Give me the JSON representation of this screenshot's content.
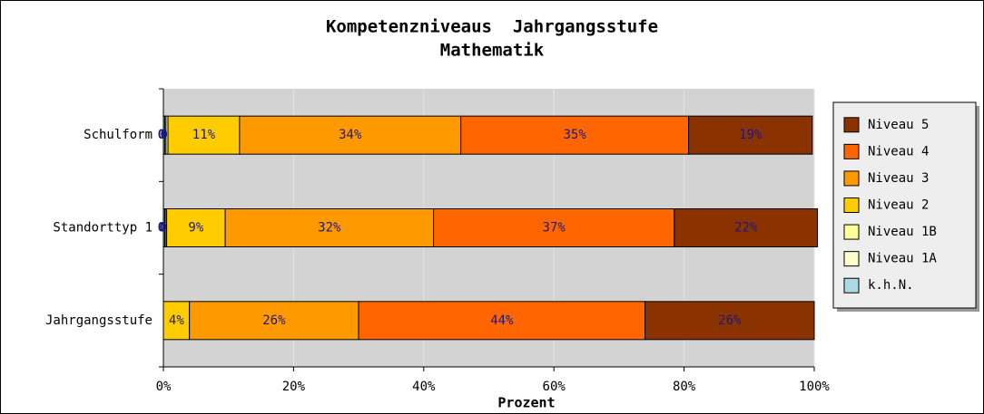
{
  "chart_data": {
    "type": "stacked_barh",
    "title": [
      "Kompetenzniveaus  Jahrgangsstufe",
      "Mathematik"
    ],
    "xlabel": "Prozent",
    "categories": [
      "Schulform",
      "Standorttyp 1",
      "Jahrgangsstufe"
    ],
    "series": [
      {
        "name": "k.h.N.",
        "color": "#add8e6",
        "values": [
          0.2,
          0.2,
          0
        ],
        "value_labels": [
          "0%",
          "0%",
          null
        ]
      },
      {
        "name": "Niveau 1A",
        "color": "#ffffcc",
        "values": [
          0.2,
          0.1,
          0
        ],
        "value_labels": [
          null,
          null,
          null
        ]
      },
      {
        "name": "Niveau 1B",
        "color": "#ffff99",
        "values": [
          0.3,
          0.2,
          0
        ],
        "value_labels": [
          "0%",
          "0%",
          null
        ]
      },
      {
        "name": "Niveau 2",
        "color": "#ffcc00",
        "values": [
          11,
          9,
          4
        ],
        "value_labels": [
          "11%",
          "9%",
          "4%"
        ]
      },
      {
        "name": "Niveau 3",
        "color": "#ff9900",
        "values": [
          34,
          32,
          26
        ],
        "value_labels": [
          "34%",
          "32%",
          "26%"
        ]
      },
      {
        "name": "Niveau 4",
        "color": "#ff6600",
        "values": [
          35,
          37,
          44
        ],
        "value_labels": [
          "35%",
          "37%",
          "44%"
        ]
      },
      {
        "name": "Niveau 5",
        "color": "#8b3300",
        "values": [
          19,
          22,
          26
        ],
        "value_labels": [
          "19%",
          "22%",
          "26%"
        ]
      }
    ],
    "xlim": [
      0,
      100
    ],
    "xticks": [
      {
        "value": 0,
        "label": "0%"
      },
      {
        "value": 20,
        "label": "20%"
      },
      {
        "value": 40,
        "label": "40%"
      },
      {
        "value": 60,
        "label": "60%"
      },
      {
        "value": 80,
        "label": "80%"
      },
      {
        "value": 100,
        "label": "100%"
      }
    ],
    "grid": true,
    "legend": "right"
  }
}
